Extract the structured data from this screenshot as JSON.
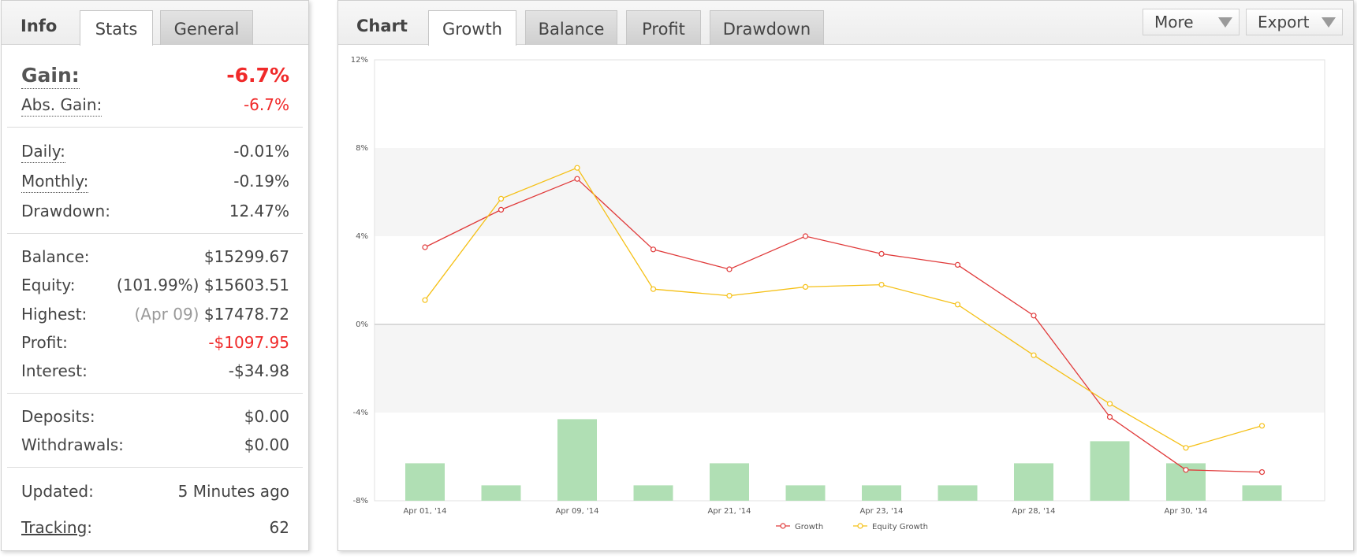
{
  "info": {
    "title": "Info",
    "tabs": [
      {
        "label": "Stats",
        "active": true
      },
      {
        "label": "General",
        "active": false
      }
    ],
    "gain": {
      "label": "Gain:",
      "value": "-6.7%"
    },
    "abs_gain": {
      "label": "Abs. Gain:",
      "value": "-6.7%"
    },
    "daily": {
      "label": "Daily:",
      "value": "-0.01%"
    },
    "monthly": {
      "label": "Monthly:",
      "value": "-0.19%"
    },
    "drawdown": {
      "label": "Drawdown:",
      "value": "12.47%"
    },
    "balance": {
      "label": "Balance:",
      "value": "$15299.67"
    },
    "equity": {
      "label": "Equity:",
      "note": "(101.99%)",
      "value": "$15603.51"
    },
    "highest": {
      "label": "Highest:",
      "note": "(Apr 09)",
      "value": "$17478.72"
    },
    "profit": {
      "label": "Profit:",
      "value": "-$1097.95"
    },
    "interest": {
      "label": "Interest:",
      "value": "-$34.98"
    },
    "deposits": {
      "label": "Deposits:",
      "value": "$0.00"
    },
    "withdrawals": {
      "label": "Withdrawals:",
      "value": "$0.00"
    },
    "updated": {
      "label": "Updated:",
      "value": "5 Minutes ago"
    },
    "tracking": {
      "label": "Tracking",
      "suffix": ":",
      "value": "62"
    },
    "negative_color": "#f02a2a"
  },
  "chart_panel": {
    "title": "Chart",
    "tabs": [
      {
        "label": "Growth",
        "active": true
      },
      {
        "label": "Balance",
        "active": false
      },
      {
        "label": "Profit",
        "active": false
      },
      {
        "label": "Drawdown",
        "active": false
      }
    ],
    "more_label": "More",
    "export_label": "Export"
  },
  "chart_data": {
    "type": "line",
    "title": "",
    "xlabel": "",
    "ylabel": "",
    "y_ticks": [
      {
        "value": 12,
        "label": "12%"
      },
      {
        "value": 8,
        "label": "8%"
      },
      {
        "value": 4,
        "label": "4%"
      },
      {
        "value": 0,
        "label": "0%"
      },
      {
        "value": -4,
        "label": "-4%"
      },
      {
        "value": -8,
        "label": "-8%"
      }
    ],
    "ylim": [
      -8,
      12
    ],
    "x_tick_labels": [
      "Apr 01, '14",
      "",
      "Apr 09, '14",
      "",
      "Apr 21, '14",
      "",
      "Apr 23, '14",
      "",
      "Apr 28, '14",
      "",
      "Apr 30, '14",
      ""
    ],
    "series": [
      {
        "name": "Growth",
        "type": "line",
        "color": "#e03a3a",
        "values": [
          3.5,
          5.2,
          6.6,
          3.4,
          2.5,
          4.0,
          3.2,
          2.7,
          0.4,
          -4.2,
          -6.6,
          -6.7
        ]
      },
      {
        "name": "Equity Growth",
        "type": "line",
        "color": "#f5c016",
        "values": [
          1.1,
          5.7,
          7.1,
          1.6,
          1.3,
          1.7,
          1.8,
          0.9,
          -1.4,
          -3.6,
          -5.6,
          -4.6
        ]
      },
      {
        "type": "bar",
        "color": "#b0dfb4",
        "values": [
          -6.3,
          -7.3,
          -4.3,
          -7.3,
          -6.3,
          -7.3,
          -7.3,
          -7.3,
          -6.3,
          -5.3,
          -6.3,
          -7.3
        ]
      }
    ],
    "bands": [
      [
        4,
        8
      ],
      [
        -4,
        0
      ]
    ],
    "band_color": "#f5f5f5",
    "legend_position": "bottom-center",
    "grid": true
  }
}
